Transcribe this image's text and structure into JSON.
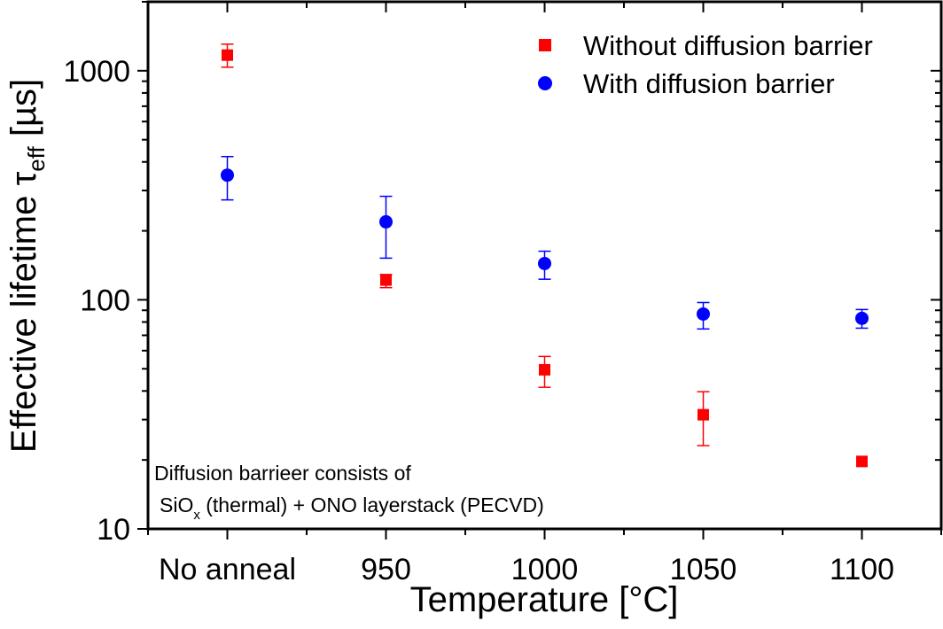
{
  "chart_data": {
    "type": "scatter",
    "title": "",
    "xlabel": "Temperature [°C]",
    "ylabel": {
      "main": "Effective lifetime τ",
      "subscript": "eff",
      "unit": " [µs]"
    },
    "categories": [
      "No anneal",
      "950",
      "1000",
      "1050",
      "1100"
    ],
    "xlim": [
      -0.5,
      4.5
    ],
    "yscale": "log",
    "ylim": [
      10,
      2000
    ],
    "yticks": [
      10,
      100,
      1000
    ],
    "ytick_labels": [
      "10",
      "100",
      "1000"
    ],
    "grid": false,
    "legend_position": "top-right",
    "series": [
      {
        "name": "Without diffusion barrier",
        "marker": "square",
        "color": "#ff0000",
        "values": [
          1170,
          122,
          49.5,
          31.5,
          19.7
        ],
        "err_low": [
          1036,
          113,
          41.5,
          23.1,
          null
        ],
        "err_high": [
          1306,
          129,
          56.6,
          39.7,
          null
        ]
      },
      {
        "name": "With diffusion barrier",
        "marker": "circle",
        "color": "#0000ff",
        "values": [
          350,
          219,
          144,
          86.7,
          83
        ],
        "err_low": [
          273,
          152,
          123,
          74.6,
          75.2
        ],
        "err_high": [
          422,
          283,
          163,
          97.3,
          90.7
        ]
      }
    ],
    "annotation": {
      "line1": "Diffusion barrieer consists of",
      "line2_pre": "SiO",
      "line2_sub": "x",
      "line2_post": " (thermal) + ONO layerstack (PECVD)"
    }
  }
}
